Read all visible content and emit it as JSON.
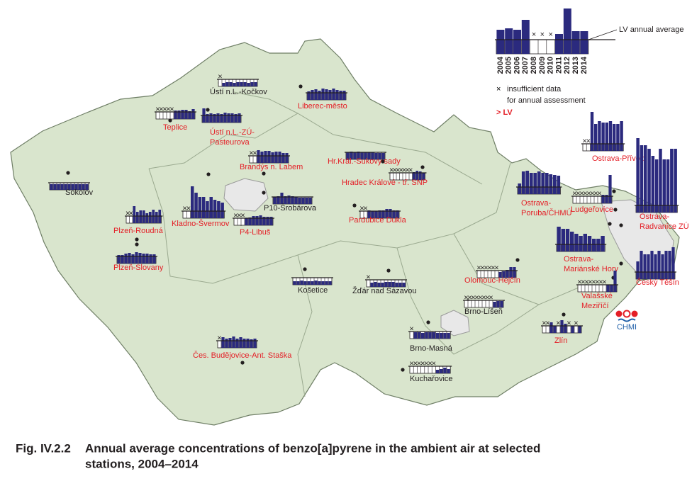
{
  "map": {
    "bar_color": "#2b2a7e",
    "legend": {
      "years": [
        2004,
        2005,
        2006,
        2007,
        2008,
        2009,
        2010,
        2011,
        2012,
        2013,
        2014
      ],
      "values": [
        1.7,
        1.8,
        1.7,
        2.4,
        null,
        null,
        null,
        1.4,
        3.2,
        1.6,
        1.6
      ],
      "lv_label": "LV annual average",
      "insufficient": [
        "insufficient data",
        "for annual assessment"
      ],
      "exceeds": "> LV",
      "exceeds_color": "#e41e26"
    },
    "stations": [
      {
        "name": [
          "Ústí n.L.-Kočkov"
        ],
        "label_color": "#231f20",
        "values": [
          null,
          0.5,
          0.6,
          0.6,
          0.5,
          0.6,
          0.6,
          0.6,
          0.5,
          0.6,
          0.6
        ]
      },
      {
        "name": [
          "Liberec-město"
        ],
        "label_color": "#e41e26",
        "values": [
          1.2,
          1.4,
          1.5,
          1.3,
          1.6,
          1.5,
          1.4,
          1.6,
          1.4,
          1.3,
          1.3
        ]
      },
      {
        "name": [
          "Teplice"
        ],
        "label_color": "#e41e26",
        "values": [
          null,
          null,
          null,
          null,
          null,
          1.2,
          1.2,
          1.3,
          1.3,
          1.1,
          1.4
        ]
      },
      {
        "name": [
          "Ústí n.L.-ZÚ-",
          "Pasteurova"
        ],
        "label_color": "#e41e26",
        "values": [
          2.0,
          1.2,
          1.3,
          1.2,
          1.3,
          1.2,
          1.4,
          1.3,
          1.3,
          1.2,
          1.3
        ]
      },
      {
        "name": [
          "Brandýs n. Labem"
        ],
        "label_color": "#e41e26",
        "values": [
          null,
          null,
          1.8,
          1.6,
          1.7,
          1.7,
          1.5,
          1.6,
          1.6,
          1.4,
          1.4
        ]
      },
      {
        "name": [
          "Hr.Král.-Sukovy sady"
        ],
        "label_color": "#e41e26",
        "values": [
          1.0,
          1.1,
          1.0,
          1.1,
          1.0,
          1.0,
          1.0,
          1.0,
          0.9,
          0.9,
          0.9
        ]
      },
      {
        "name": [
          "Hradec Králové - tř. SNP"
        ],
        "label_color": "#e41e26",
        "values": [
          null,
          null,
          null,
          null,
          null,
          null,
          null,
          1.1,
          1.3,
          1.2,
          1.0
        ]
      },
      {
        "name": [
          "Sokolov"
        ],
        "label_color": "#231f20",
        "values": [
          0.8,
          0.8,
          0.8,
          0.8,
          0.8,
          0.8,
          0.8,
          0.8,
          0.8,
          0.8,
          0.8
        ]
      },
      {
        "name": [
          "Kladno-Švermov"
        ],
        "label_color": "#e41e26",
        "values": [
          null,
          null,
          4.5,
          3.6,
          3.0,
          3.0,
          2.4,
          3.0,
          2.6,
          2.4,
          2.2
        ]
      },
      {
        "name": [
          "P10-Šrobárova"
        ],
        "label_color": "#231f20",
        "values": [
          1.0,
          1.1,
          1.6,
          1.1,
          1.2,
          1.1,
          1.0,
          0.9,
          0.9,
          0.9,
          0.9
        ]
      },
      {
        "name": [
          "P4-Libuš"
        ],
        "label_color": "#e41e26",
        "values": [
          null,
          null,
          null,
          1.0,
          1.1,
          1.3,
          1.3,
          1.4,
          1.2,
          1.2,
          1.2
        ]
      },
      {
        "name": [
          "Pardubice Dukla"
        ],
        "label_color": "#e41e26",
        "values": [
          null,
          null,
          1.1,
          1.0,
          1.0,
          1.1,
          1.1,
          1.3,
          1.3,
          1.1,
          1.1
        ]
      },
      {
        "name": [
          "Plzeň-Roudná"
        ],
        "label_color": "#e41e26",
        "values": [
          null,
          null,
          2.4,
          1.6,
          1.8,
          1.8,
          1.4,
          1.6,
          1.9,
          1.6,
          1.9
        ]
      },
      {
        "name": [
          "Plzeň-Slovany"
        ],
        "label_color": "#e41e26",
        "values": [
          1.2,
          1.2,
          1.4,
          1.5,
          1.3,
          1.6,
          1.5,
          1.4,
          1.4,
          1.3,
          1.3
        ]
      },
      {
        "name": [
          "Košetice"
        ],
        "label_color": "#231f20",
        "values": [
          0.5,
          0.5,
          0.6,
          0.5,
          0.5,
          0.5,
          0.6,
          0.5,
          0.5,
          0.5,
          0.5
        ]
      },
      {
        "name": [
          "Žďár nad Sázavou"
        ],
        "label_color": "#231f20",
        "values": [
          null,
          0.6,
          0.7,
          0.6,
          0.6,
          0.7,
          0.7,
          0.7,
          0.6,
          0.6,
          0.6
        ]
      },
      {
        "name": [
          "Ostrava-",
          "Poruba/ČHMÚ"
        ],
        "label_color": "#e41e26",
        "values": [
          1.5,
          3.2,
          3.3,
          3.0,
          3.0,
          3.2,
          3.0,
          3.0,
          2.8,
          2.7,
          2.6
        ]
      },
      {
        "name": [
          "Ostrava-Přívoz"
        ],
        "label_color": "#e41e26",
        "values": [
          null,
          null,
          5.5,
          3.8,
          4.2,
          4.0,
          4.0,
          4.2,
          3.8,
          3.8,
          4.2
        ]
      },
      {
        "name": [
          "Ludgeřovice"
        ],
        "label_color": "#e41e26",
        "values": [
          null,
          null,
          null,
          null,
          null,
          null,
          null,
          null,
          1.2,
          1.2,
          4.0
        ]
      },
      {
        "name": [
          "Ostrava-",
          "Radvanice ZÚ"
        ],
        "label_color": "#e41e26",
        "values": [
          10.5,
          9.5,
          9.5,
          9.0,
          8.0,
          7.5,
          9.0,
          7.5,
          7.5,
          9.0,
          9.0
        ]
      },
      {
        "name": [
          "Ostrava-",
          "Mariánské Hory"
        ],
        "label_color": "#e41e26",
        "values": [
          3.5,
          3.2,
          3.2,
          2.8,
          2.5,
          2.2,
          2.5,
          2.2,
          1.8,
          1.8,
          2.2
        ]
      },
      {
        "name": [
          "Český Těšín"
        ],
        "label_color": "#e41e26",
        "values": [
          2.5,
          4.0,
          3.5,
          3.5,
          4.0,
          3.5,
          4.0,
          3.5,
          4.0,
          4.0,
          4.5
        ]
      },
      {
        "name": [
          "Olomouc-Hejčín"
        ],
        "label_color": "#e41e26",
        "values": [
          null,
          null,
          null,
          null,
          null,
          null,
          0.8,
          0.9,
          1.1,
          1.5,
          1.5
        ]
      },
      {
        "name": [
          "Valašské",
          "Meziříčí"
        ],
        "label_color": "#e41e26",
        "values": [
          null,
          null,
          null,
          null,
          null,
          null,
          null,
          null,
          1.0,
          1.0,
          3.0
        ]
      },
      {
        "name": [
          "Brno-Líšeň"
        ],
        "label_color": "#231f20",
        "values": [
          null,
          null,
          null,
          null,
          null,
          null,
          null,
          null,
          0.8,
          0.9,
          0.9
        ]
      },
      {
        "name": [
          "Zlín"
        ],
        "label_color": "#e41e26",
        "values": [
          null,
          null,
          1.5,
          1.0,
          null,
          1.8,
          1.3,
          null,
          1.0,
          null,
          1.0
        ]
      },
      {
        "name": [
          "Brno-Masná"
        ],
        "label_color": "#231f20",
        "values": [
          null,
          0.9,
          0.9,
          0.8,
          0.9,
          0.9,
          0.9,
          0.8,
          0.8,
          0.8,
          0.8
        ]
      },
      {
        "name": [
          "Kuchařovice"
        ],
        "label_color": "#231f20",
        "values": [
          null,
          null,
          null,
          null,
          null,
          null,
          null,
          0.5,
          0.6,
          0.8,
          0.6
        ]
      },
      {
        "name": [
          "Čes. Budějovice-Ant. Staška"
        ],
        "label_color": "#e41e26",
        "values": [
          null,
          1.5,
          1.3,
          1.4,
          1.6,
          1.3,
          1.5,
          1.3,
          1.3,
          1.2,
          1.3
        ]
      }
    ],
    "logo": "CHMI"
  },
  "caption": {
    "label": "Fig. IV.2.2",
    "text": [
      "Annual average concentrations of benzo[a]pyrene in the ambient air at selected",
      "stations, 2004–2014"
    ]
  }
}
